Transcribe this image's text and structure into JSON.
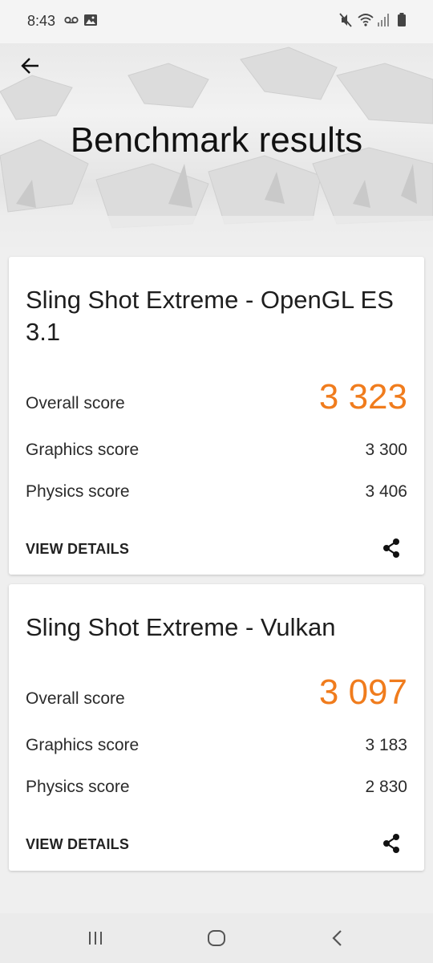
{
  "status_bar": {
    "time": "8:43",
    "left_icons": [
      "voicemail-icon",
      "image-icon"
    ],
    "right_icons": [
      "mute-icon",
      "wifi-icon",
      "signal-icon",
      "battery-icon"
    ]
  },
  "header": {
    "title": "Benchmark results",
    "back_icon": "arrow-left-icon"
  },
  "cards": [
    {
      "title": "Sling Shot Extreme - OpenGL ES 3.1",
      "overall_label": "Overall score",
      "overall_value": "3 323",
      "graphics_label": "Graphics score",
      "graphics_value": "3 300",
      "physics_label": "Physics score",
      "physics_value": "3 406",
      "details_label": "VIEW DETAILS",
      "share_icon": "share-icon"
    },
    {
      "title": "Sling Shot Extreme - Vulkan",
      "overall_label": "Overall score",
      "overall_value": "3 097",
      "graphics_label": "Graphics score",
      "graphics_value": "3 183",
      "physics_label": "Physics score",
      "physics_value": "2 830",
      "details_label": "VIEW DETAILS",
      "share_icon": "share-icon"
    }
  ],
  "nav_bar": {
    "buttons": [
      "recent-apps-icon",
      "home-icon",
      "back-icon"
    ]
  },
  "colors": {
    "accent": "#f07c1d",
    "background": "#efefef",
    "card": "#ffffff"
  }
}
